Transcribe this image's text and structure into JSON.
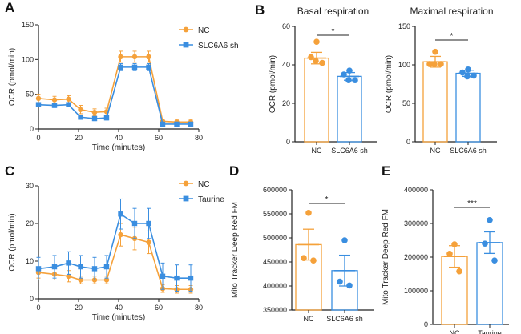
{
  "colors": {
    "orange": "#f5a13a",
    "blue": "#3a8ee0",
    "axis": "#222222"
  },
  "panels": [
    "A",
    "B",
    "C",
    "D",
    "E"
  ],
  "chart_data": [
    {
      "id": "A",
      "type": "line",
      "xlabel": "Time (minutes)",
      "ylabel": "OCR (pmol/min)",
      "xlim": [
        0,
        80
      ],
      "ylim": [
        0,
        150
      ],
      "xticks": [
        0,
        20,
        40,
        60,
        80
      ],
      "yticks": [
        0,
        50,
        100,
        150
      ],
      "legend_position": "top-right",
      "series": [
        {
          "name": "NC",
          "color": "#f5a13a",
          "marker": "circle",
          "x": [
            0,
            8,
            15,
            21,
            28,
            34,
            41,
            48,
            55,
            62,
            69,
            76
          ],
          "y": [
            44,
            42,
            43,
            28,
            24,
            25,
            104,
            104,
            104,
            11,
            10,
            10
          ],
          "err": [
            6,
            5,
            5,
            6,
            5,
            5,
            8,
            8,
            8,
            3,
            3,
            3
          ]
        },
        {
          "name": "SLC6A6 sh",
          "color": "#3a8ee0",
          "marker": "square",
          "x": [
            0,
            8,
            15,
            21,
            28,
            34,
            41,
            48,
            55,
            62,
            69,
            76
          ],
          "y": [
            35,
            34,
            35,
            17,
            15,
            16,
            89,
            89,
            89,
            7,
            7,
            7
          ],
          "err": [
            3,
            3,
            3,
            3,
            3,
            3,
            5,
            5,
            5,
            2,
            2,
            2
          ]
        }
      ]
    },
    {
      "id": "B1",
      "type": "bar",
      "title": "Basal respiration",
      "ylabel": "OCR (pmol/min)",
      "ylim": [
        0,
        60
      ],
      "yticks": [
        0,
        20,
        40,
        60
      ],
      "categories": [
        "NC",
        "SLC6A6 sh"
      ],
      "values": [
        43.5,
        34
      ],
      "err": [
        3,
        2
      ],
      "points": [
        [
          52,
          44,
          41,
          42
        ],
        [
          37,
          35,
          32,
          32
        ]
      ],
      "significance": "*"
    },
    {
      "id": "B2",
      "type": "bar",
      "title": "Maximal respiration",
      "ylabel": "OCR (pmol/min)",
      "ylim": [
        0,
        150
      ],
      "yticks": [
        0,
        50,
        100,
        150
      ],
      "categories": [
        "NC",
        "SLC6A6 sh"
      ],
      "values": [
        104,
        89
      ],
      "err": [
        7,
        4
      ],
      "points": [
        [
          117,
          101,
          101,
          101
        ],
        [
          94,
          90,
          86,
          85
        ]
      ],
      "significance": "*"
    },
    {
      "id": "C",
      "type": "line",
      "xlabel": "Time (minutes)",
      "ylabel": "OCR (pmol/min)",
      "xlim": [
        0,
        80
      ],
      "ylim": [
        0,
        30
      ],
      "xticks": [
        0,
        20,
        40,
        60,
        80
      ],
      "yticks": [
        0,
        10,
        20,
        30
      ],
      "legend_position": "top-right",
      "series": [
        {
          "name": "NC",
          "color": "#f5a13a",
          "marker": "circle",
          "x": [
            0,
            8,
            15,
            21,
            28,
            34,
            41,
            48,
            55,
            62,
            69,
            76
          ],
          "y": [
            7,
            6.5,
            6,
            5,
            5,
            5,
            17,
            16,
            15,
            2.7,
            2.5,
            2.5
          ],
          "err": [
            1.5,
            1.5,
            1.5,
            1,
            1,
            1,
            3,
            3,
            3,
            1,
            1,
            1
          ]
        },
        {
          "name": "Taurine",
          "color": "#3a8ee0",
          "marker": "square",
          "x": [
            0,
            8,
            15,
            21,
            28,
            34,
            41,
            48,
            55,
            62,
            69,
            76
          ],
          "y": [
            8,
            8.5,
            9.5,
            8.5,
            8,
            8.5,
            22.5,
            20,
            20,
            6,
            5.5,
            5.5
          ],
          "err": [
            3,
            3,
            3,
            3,
            3,
            3,
            4,
            4,
            4,
            3.5,
            3.5,
            3.5
          ]
        }
      ]
    },
    {
      "id": "D",
      "type": "bar",
      "ylabel": "Mito Tracker Deep Red FM",
      "ylim": [
        350000,
        600000
      ],
      "yticks": [
        350000,
        400000,
        450000,
        500000,
        550000,
        600000
      ],
      "categories": [
        "NC",
        "SLC6A6 sh"
      ],
      "values": [
        486000,
        432000
      ],
      "err": [
        32000,
        32000
      ],
      "points": [
        [
          552000,
          458000,
          453000
        ],
        [
          495000,
          409000,
          401000
        ]
      ],
      "significance": "*"
    },
    {
      "id": "E",
      "type": "bar",
      "ylabel": "Mito Tracker Deep Red FM",
      "ylim": [
        0,
        400000
      ],
      "yticks": [
        0,
        100000,
        200000,
        300000,
        400000
      ],
      "categories": [
        "NC",
        "Taurine"
      ],
      "values": [
        202000,
        243000
      ],
      "err": [
        32000,
        32000
      ],
      "points": [
        [
          238000,
          210000,
          158000
        ],
        [
          310000,
          240000,
          190000
        ]
      ],
      "significance": "***"
    }
  ]
}
